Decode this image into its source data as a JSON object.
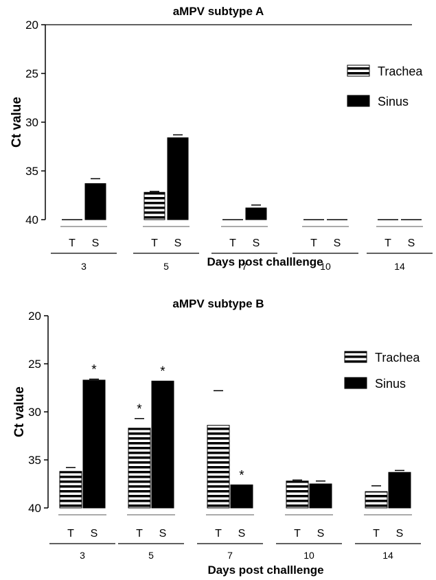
{
  "chart_data": [
    {
      "type": "bar",
      "title": "aMPV subtype A",
      "xlabel": "Days post challlenge",
      "ylabel": "Ct value",
      "ylim": [
        20,
        40
      ],
      "y_inverted": true,
      "yticks": [
        20,
        25,
        30,
        35,
        40
      ],
      "categories": [
        "3",
        "5",
        "7",
        "10",
        "14"
      ],
      "bar_labels": [
        "T",
        "S"
      ],
      "series": [
        {
          "name": "Trachea",
          "pattern": "horizontal-stripes",
          "values": [
            40,
            37.2,
            40,
            40,
            40
          ],
          "error": [
            0,
            0.1,
            0,
            0,
            0
          ],
          "significant": [
            false,
            false,
            false,
            false,
            false
          ]
        },
        {
          "name": "Sinus",
          "pattern": "solid-black",
          "values": [
            36.3,
            31.6,
            38.8,
            40,
            40
          ],
          "error": [
            0.5,
            0.3,
            0.3,
            0,
            0
          ],
          "significant": [
            false,
            false,
            false,
            false,
            false
          ]
        }
      ],
      "legend_position": "top-right",
      "significance_mark": "*"
    },
    {
      "type": "bar",
      "title": "aMPV subtype B",
      "xlabel": "Days post challlenge",
      "ylabel": "Ct value",
      "ylim": [
        20,
        40
      ],
      "y_inverted": true,
      "yticks": [
        20,
        25,
        30,
        35,
        40
      ],
      "categories": [
        "3",
        "5",
        "7",
        "10",
        "14"
      ],
      "bar_labels": [
        "T",
        "S"
      ],
      "series": [
        {
          "name": "Trachea",
          "pattern": "horizontal-stripes",
          "values": [
            36.2,
            31.7,
            31.4,
            37.2,
            38.3
          ],
          "error": [
            0.4,
            1.0,
            3.6,
            0.1,
            0.6
          ],
          "significant": [
            false,
            true,
            false,
            false,
            false
          ]
        },
        {
          "name": "Sinus",
          "pattern": "solid-black",
          "values": [
            26.7,
            26.8,
            37.6,
            37.5,
            36.3
          ],
          "error": [
            0.1,
            0,
            0,
            0.3,
            0.2
          ],
          "significant": [
            true,
            true,
            true,
            false,
            false
          ]
        }
      ],
      "legend_position": "top-right",
      "significance_mark": "*"
    }
  ]
}
